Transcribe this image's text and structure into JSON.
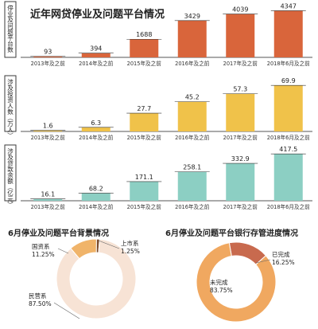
{
  "header": {
    "title": "近年网贷停业及问题平台情况"
  },
  "colors": {
    "background": "#ffffff",
    "ink": "#222222",
    "axis": "#555555",
    "label_box": "#3a3a3a",
    "donut_track": "#efe2d6"
  },
  "chart_data": [
    {
      "type": "bar",
      "ylabel": "停业及问题平台数",
      "categories": [
        "2013年及之前",
        "2014年及之前",
        "2015年及之前",
        "2016年及之前",
        "2017年及之前",
        "2018年6月及之前"
      ],
      "values": [
        93,
        394,
        1688,
        3429,
        4039,
        4347
      ],
      "data_labels": [
        "93",
        "394",
        "1688",
        "3429",
        "4039",
        "4347"
      ],
      "color": "#d9653b",
      "ylim": [
        0,
        4600
      ]
    },
    {
      "type": "bar",
      "ylabel": "涉及投资人数（万人）",
      "categories": [
        "2013年及之前",
        "2014年及之前",
        "2015年及之前",
        "2016年及之前",
        "2017年及之前",
        "2018年6月及之前"
      ],
      "values": [
        1.6,
        6.3,
        27.7,
        45.2,
        57.3,
        69.9
      ],
      "data_labels": [
        "1.6",
        "6.3",
        "27.7",
        "45.2",
        "57.3",
        "69.9"
      ],
      "color": "#f0c24a",
      "ylim": [
        0,
        75
      ]
    },
    {
      "type": "bar",
      "ylabel": "涉及贷款余额（亿元）",
      "categories": [
        "2013年及之前",
        "2014年及之前",
        "2015年及之前",
        "2016年及之前",
        "2017年及之前",
        "2018年6月及之前"
      ],
      "values": [
        16.1,
        68.2,
        171.1,
        258.1,
        332.9,
        417.5
      ],
      "data_labels": [
        "16.1",
        "68.2",
        "171.1",
        "258.1",
        "332.9",
        "417.5"
      ],
      "color": "#8ccfc3",
      "ylim": [
        0,
        440
      ]
    },
    {
      "type": "pie",
      "title": "6月停业及问题平台背景情况",
      "slices": [
        {
          "label": "民营系",
          "value": 87.5,
          "display": "87.50%",
          "color": "#f7e3d5"
        },
        {
          "label": "国资系",
          "value": 11.25,
          "display": "11.25%",
          "color": "#f0b46a"
        },
        {
          "label": "上市系",
          "value": 1.25,
          "display": "1.25%",
          "color": "#7a4a2a"
        }
      ]
    },
    {
      "type": "pie",
      "title": "6月停业及问题平台银行存管进度情况",
      "slices": [
        {
          "label": "未完成",
          "value": 83.75,
          "display": "83.75%",
          "color": "#f0a860"
        },
        {
          "label": "已完成",
          "value": 16.25,
          "display": "16.25%",
          "color": "#c86a4e"
        }
      ]
    }
  ]
}
